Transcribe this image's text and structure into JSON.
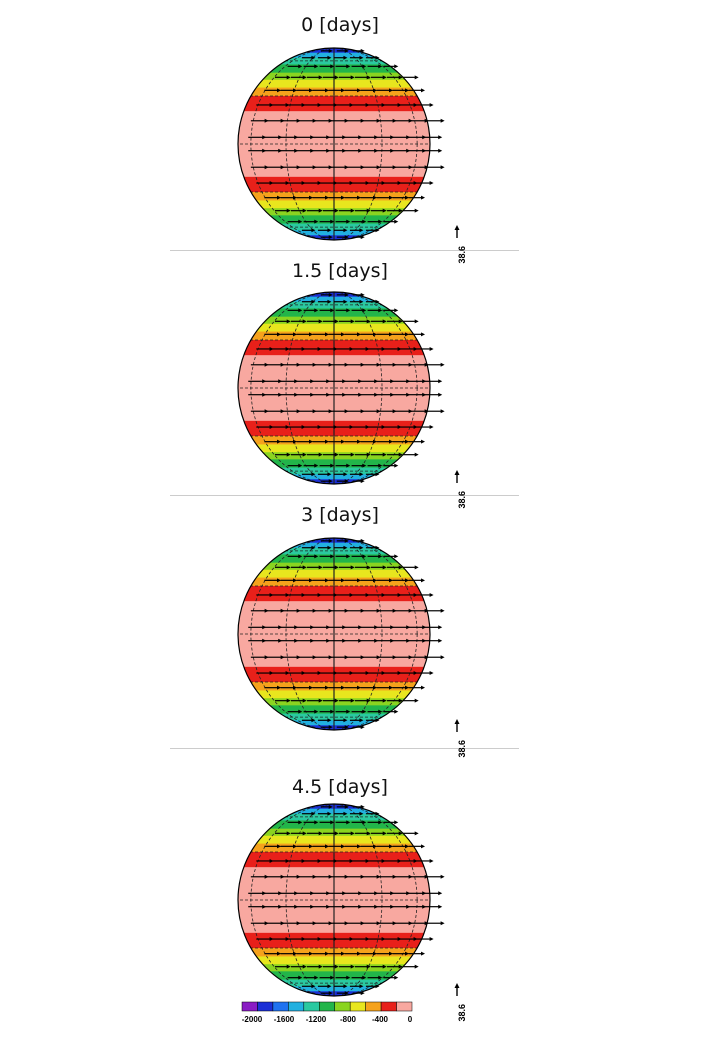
{
  "panels": [
    {
      "title": "0 [days]"
    },
    {
      "title": "1.5 [days]"
    },
    {
      "title": "3 [days]"
    },
    {
      "title": "4.5 [days]"
    }
  ],
  "reference_vector": {
    "label": "38.6"
  },
  "colorbar": {
    "colors": [
      "#8a1cc4",
      "#1b2fd6",
      "#1f72f0",
      "#22b0e0",
      "#2ac9a0",
      "#22b54a",
      "#8ad420",
      "#e8e61e",
      "#f5a21c",
      "#e8201a",
      "#f8a8a0"
    ],
    "tick_labels": [
      "-2000",
      "-1600",
      "-1200",
      "-800",
      "-400",
      "0"
    ]
  },
  "bands": [
    {
      "lat": 84,
      "color": "#1b2fd6"
    },
    {
      "lat": 72,
      "color": "#22b0e0"
    },
    {
      "lat": 64,
      "color": "#2ac9a0"
    },
    {
      "lat": 56,
      "color": "#22b54a"
    },
    {
      "lat": 48,
      "color": "#8ad420"
    },
    {
      "lat": 42,
      "color": "#e8e61e"
    },
    {
      "lat": 36,
      "color": "#f5a21c"
    },
    {
      "lat": 30,
      "color": "#e8201a"
    },
    {
      "lat": 20,
      "color": "#f8a8a0"
    }
  ]
}
